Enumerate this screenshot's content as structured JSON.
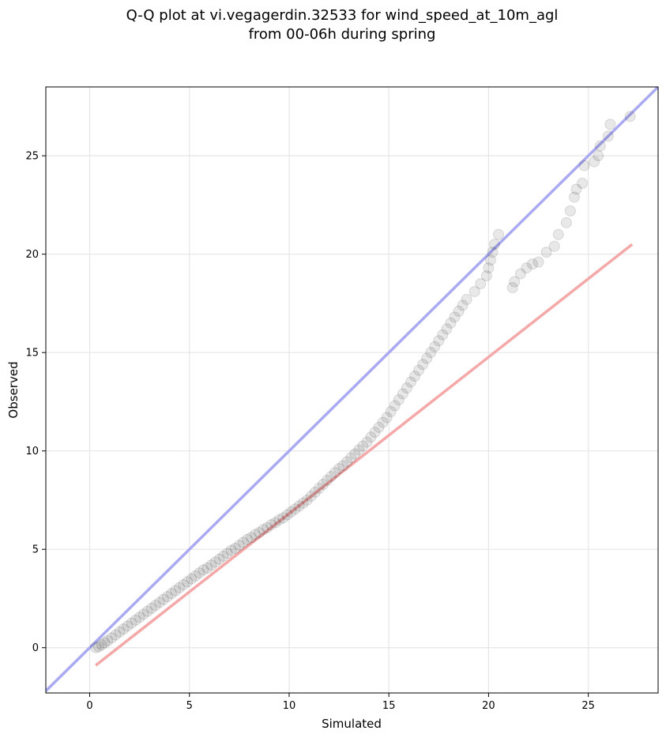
{
  "chart_data": {
    "type": "scatter",
    "title_lines": [
      "Q-Q plot at vi.vegagerdin.32533 for wind_speed_at_10m_agl",
      "from 00-06h during spring"
    ],
    "xlabel": "Simulated",
    "ylabel": "Observed",
    "xlim": [
      -2.2,
      28.5
    ],
    "ylim": [
      -2.3,
      28.5
    ],
    "xticks": [
      0,
      5,
      10,
      15,
      20,
      25
    ],
    "yticks": [
      0,
      5,
      10,
      15,
      20,
      25
    ],
    "xtick_labels": [
      "0",
      "5",
      "10",
      "15",
      "20",
      "25"
    ],
    "ytick_labels": [
      "0",
      "5",
      "10",
      "15",
      "20",
      "25"
    ],
    "grid": true,
    "colors": {
      "points": "#000000",
      "identity_line": "#aaaaf2",
      "fit_line": "#f5a8a8"
    },
    "identity_line": {
      "x": [
        -2.2,
        28.5
      ],
      "y": [
        -2.2,
        28.5
      ]
    },
    "fit_line": {
      "x": [
        0.3,
        27.2
      ],
      "y": [
        -0.9,
        20.5
      ]
    },
    "points": {
      "x": [
        0.3,
        0.45,
        0.6,
        0.75,
        0.9,
        1.1,
        1.3,
        1.5,
        1.7,
        1.9,
        2.1,
        2.3,
        2.5,
        2.7,
        2.9,
        3.1,
        3.3,
        3.5,
        3.7,
        3.9,
        4.1,
        4.3,
        4.5,
        4.7,
        4.9,
        5.1,
        5.3,
        5.5,
        5.7,
        5.9,
        6.1,
        6.3,
        6.5,
        6.7,
        6.9,
        7.1,
        7.3,
        7.5,
        7.7,
        7.9,
        8.1,
        8.3,
        8.5,
        8.7,
        8.9,
        9.1,
        9.3,
        9.5,
        9.7,
        9.9,
        10.1,
        10.3,
        10.5,
        10.7,
        10.9,
        11.1,
        11.3,
        11.5,
        11.7,
        11.9,
        12.1,
        12.3,
        12.5,
        12.7,
        12.9,
        13.1,
        13.3,
        13.5,
        13.7,
        13.9,
        14.1,
        14.3,
        14.5,
        14.7,
        14.9,
        15.1,
        15.3,
        15.5,
        15.7,
        15.9,
        16.1,
        16.3,
        16.5,
        16.7,
        16.9,
        17.1,
        17.3,
        17.5,
        17.7,
        17.9,
        18.1,
        18.3,
        18.5,
        18.7,
        18.9,
        19.3,
        19.6,
        19.9,
        20.0,
        20.1,
        20.2,
        20.3,
        20.5,
        21.2,
        21.3,
        21.6,
        21.9,
        22.2,
        22.5,
        22.9,
        23.3,
        23.5,
        23.9,
        24.1,
        24.3,
        24.4,
        24.7,
        24.8,
        25.3,
        25.5,
        25.6,
        26.0,
        26.1,
        27.1
      ],
      "y": [
        0.0,
        0.05,
        0.15,
        0.25,
        0.35,
        0.5,
        0.65,
        0.8,
        0.95,
        1.1,
        1.25,
        1.4,
        1.55,
        1.7,
        1.85,
        2.0,
        2.15,
        2.3,
        2.45,
        2.6,
        2.75,
        2.9,
        3.05,
        3.2,
        3.35,
        3.5,
        3.65,
        3.8,
        3.95,
        4.05,
        4.2,
        4.35,
        4.5,
        4.65,
        4.8,
        4.95,
        5.05,
        5.2,
        5.35,
        5.5,
        5.6,
        5.75,
        5.85,
        6.0,
        6.1,
        6.25,
        6.35,
        6.5,
        6.6,
        6.75,
        6.9,
        7.05,
        7.2,
        7.35,
        7.5,
        7.7,
        7.9,
        8.1,
        8.3,
        8.5,
        8.7,
        8.9,
        9.1,
        9.25,
        9.45,
        9.65,
        9.85,
        10.05,
        10.25,
        10.45,
        10.7,
        10.95,
        11.2,
        11.45,
        11.7,
        12.0,
        12.3,
        12.6,
        12.9,
        13.2,
        13.5,
        13.8,
        14.1,
        14.4,
        14.7,
        15.0,
        15.3,
        15.6,
        15.9,
        16.2,
        16.5,
        16.8,
        17.1,
        17.4,
        17.7,
        18.1,
        18.5,
        18.9,
        19.3,
        19.7,
        20.1,
        20.5,
        21.0,
        18.3,
        18.6,
        19.0,
        19.3,
        19.5,
        19.6,
        20.1,
        20.4,
        21.0,
        21.6,
        22.2,
        22.9,
        23.3,
        23.6,
        24.5,
        24.7,
        25.0,
        25.5,
        26.0,
        26.6,
        27.0
      ]
    }
  }
}
